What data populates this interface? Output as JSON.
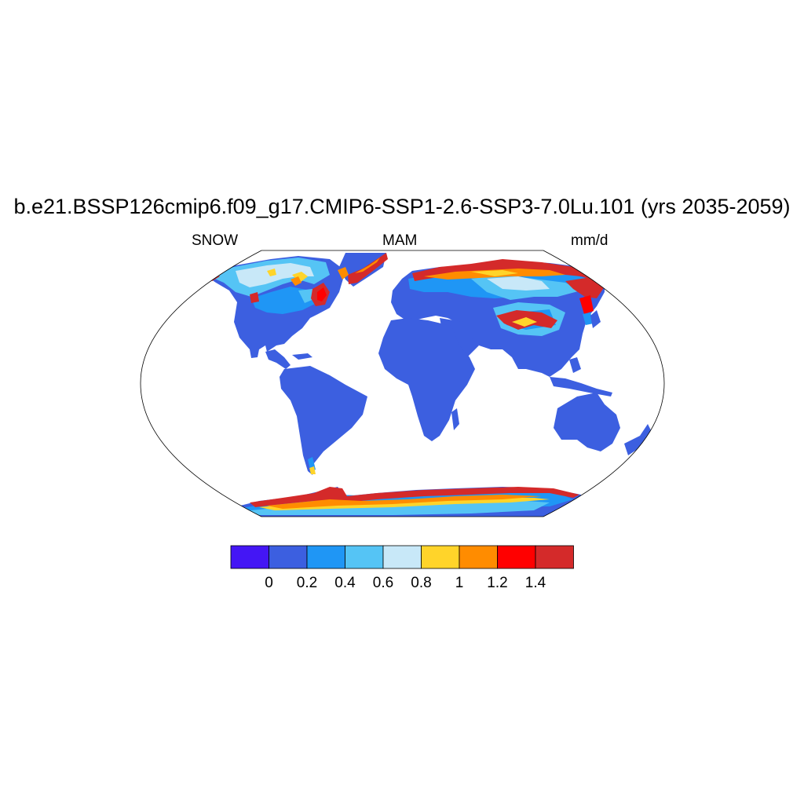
{
  "title": "b.e21.BSSP126cmip6.f09_g17.CMIP6-SSP1-2.6-SSP3-7.0Lu.101 (yrs 2035-2059)",
  "left_string": "SNOW",
  "center_string": "MAM",
  "right_string": "mm/d",
  "colorbar": {
    "colors": [
      "#4416f5",
      "#3c5fe0",
      "#1f96f5",
      "#55c4f5",
      "#c8e8f8",
      "#ffd42a",
      "#ff8c00",
      "#ff0000",
      "#d42a2a"
    ],
    "labels": [
      "0",
      "0.2",
      "0.4",
      "0.6",
      "0.8",
      "1",
      "1.2",
      "1.4"
    ]
  },
  "map": {
    "projection": "Robinson",
    "land_base_color": "#3c5fe0",
    "ocean_color": "#ffffff"
  }
}
